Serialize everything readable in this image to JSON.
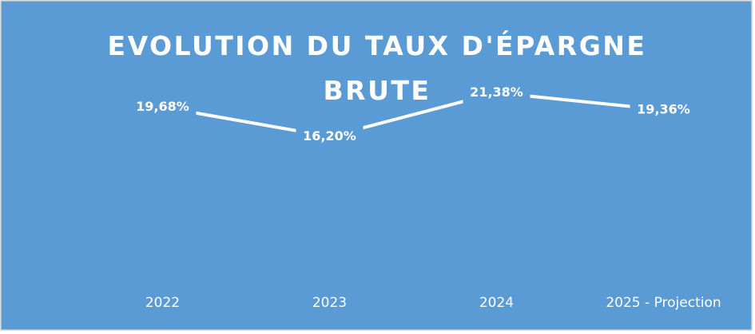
{
  "chart_data": {
    "type": "line",
    "title": "EVOLUTION DU TAUX D'ÉPARGNE BRUTE",
    "categories": [
      "2022",
      "2023",
      "2024",
      "2025 - Projection"
    ],
    "values": [
      19.68,
      16.2,
      21.38,
      19.36
    ],
    "value_labels": [
      "19,68%",
      "16,20%",
      "21,38%",
      "19,36%"
    ],
    "color": "#ffffff",
    "ylim": [
      0,
      25
    ]
  }
}
